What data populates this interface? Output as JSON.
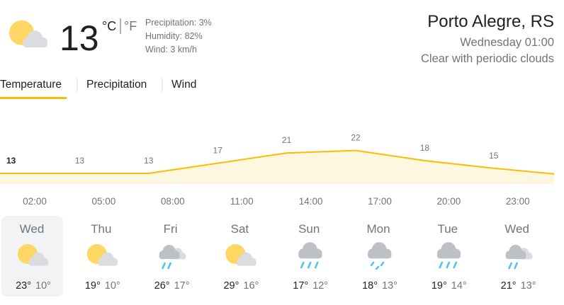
{
  "current": {
    "temperature": "13",
    "unit_c": "°C",
    "unit_f": "°F",
    "precipitation": "Precipitation: 3%",
    "humidity": "Humidity: 82%",
    "wind": "Wind: 3 km/h",
    "icon": "partly-cloudy"
  },
  "location": {
    "city": "Porto Alegre, RS",
    "time": "Wednesday 01:00",
    "condition": "Clear with periodic clouds"
  },
  "tabs": [
    "Temperature",
    "Precipitation",
    "Wind"
  ],
  "chart_data": {
    "type": "area",
    "values": [
      13,
      13,
      13,
      17,
      21,
      22,
      18,
      15
    ],
    "x_labels": [
      "02:00",
      "05:00",
      "08:00",
      "11:00",
      "14:00",
      "17:00",
      "20:00",
      "23:00"
    ],
    "color": "#fbbc04",
    "fill": "#fef7e0"
  },
  "forecast": [
    {
      "day": "Wed",
      "high": "23°",
      "low": "10°",
      "icon": "partly-cloudy"
    },
    {
      "day": "Thu",
      "high": "19°",
      "low": "10°",
      "icon": "partly-cloudy"
    },
    {
      "day": "Fri",
      "high": "26°",
      "low": "17°",
      "icon": "sun-rain"
    },
    {
      "day": "Sat",
      "high": "29°",
      "low": "16°",
      "icon": "partly-cloudy"
    },
    {
      "day": "Sun",
      "high": "17°",
      "low": "12°",
      "icon": "rain"
    },
    {
      "day": "Mon",
      "high": "18°",
      "low": "13°",
      "icon": "drizzle"
    },
    {
      "day": "Tue",
      "high": "19°",
      "low": "14°",
      "icon": "rain"
    },
    {
      "day": "Wed",
      "high": "21°",
      "low": "13°",
      "icon": "sun-rain"
    }
  ]
}
